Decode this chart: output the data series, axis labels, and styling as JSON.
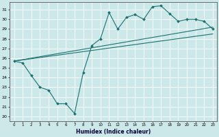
{
  "title": "",
  "xlabel": "Humidex (Indice chaleur)",
  "ylabel": "",
  "bg_color": "#cce8e8",
  "grid_color": "#ffffff",
  "line_color": "#1a7070",
  "xlim": [
    -0.5,
    23.5
  ],
  "ylim": [
    19.5,
    31.8
  ],
  "yticks": [
    20,
    21,
    22,
    23,
    24,
    25,
    26,
    27,
    28,
    29,
    30,
    31
  ],
  "xticks": [
    0,
    1,
    2,
    3,
    4,
    5,
    6,
    7,
    8,
    9,
    10,
    11,
    12,
    13,
    14,
    15,
    16,
    17,
    18,
    19,
    20,
    21,
    22,
    23
  ],
  "line1_x": [
    0,
    1,
    2,
    3,
    4,
    5,
    6,
    7,
    8,
    9,
    10,
    11,
    12,
    13,
    14,
    15,
    16,
    17,
    18,
    19,
    20,
    21,
    22,
    23
  ],
  "line1_y": [
    25.7,
    25.5,
    24.2,
    23.0,
    22.7,
    21.3,
    21.3,
    20.3,
    24.5,
    27.3,
    28.0,
    30.7,
    29.0,
    30.2,
    30.5,
    30.0,
    31.3,
    31.4,
    30.6,
    29.8,
    30.0,
    30.0,
    29.8,
    29.0
  ],
  "line2_x": [
    0,
    23
  ],
  "line2_y": [
    25.7,
    28.5
  ],
  "line3_x": [
    0,
    23
  ],
  "line3_y": [
    25.7,
    29.2
  ]
}
